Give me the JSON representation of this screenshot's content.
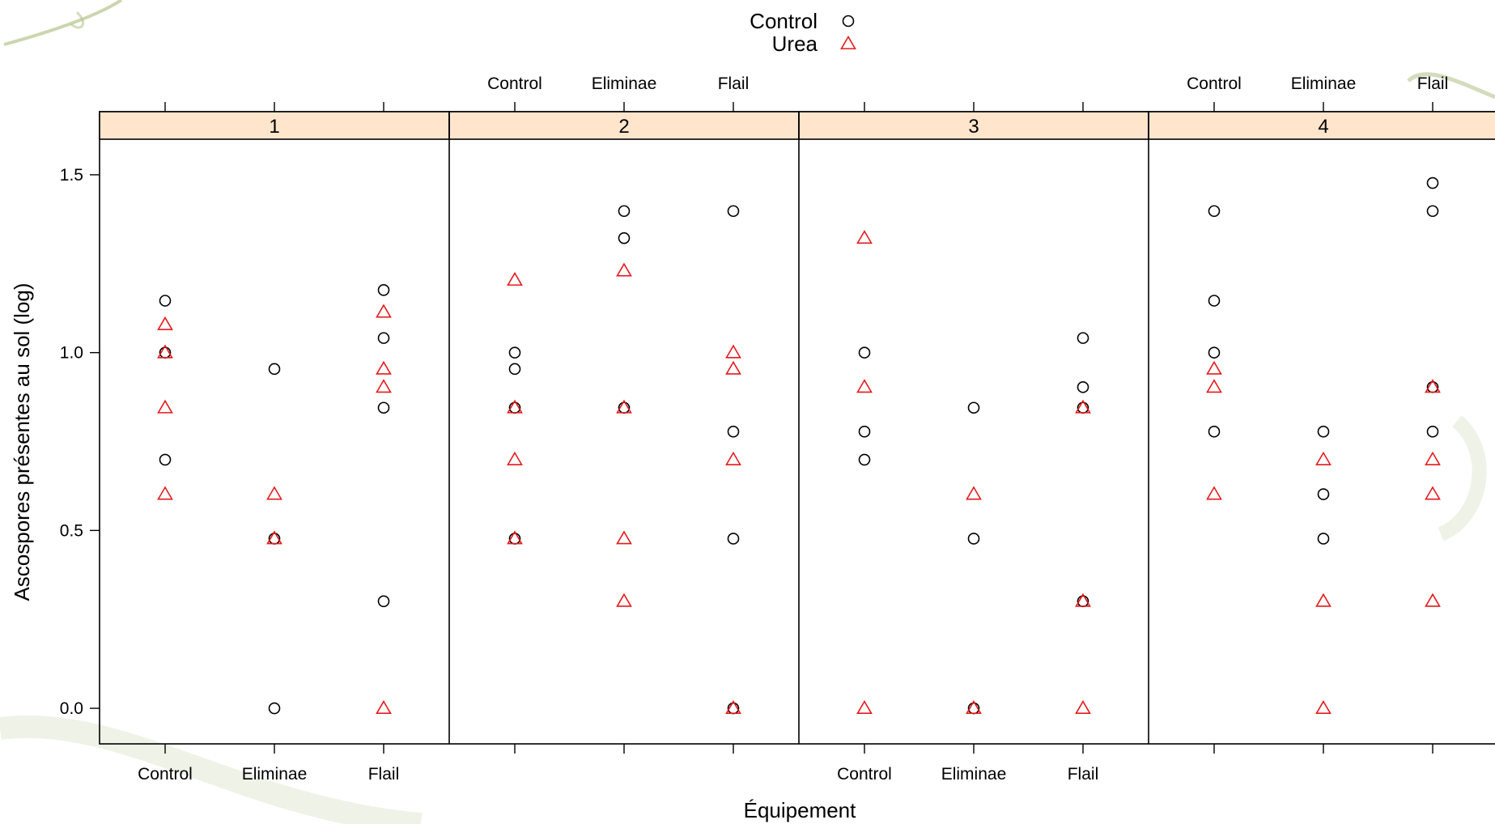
{
  "chart_data": {
    "type": "scatter",
    "title": "",
    "xlabel": "Équipement",
    "ylabel": "Ascospores présentes au sol (log)",
    "categories": [
      "Control",
      "Eliminae",
      "Flail"
    ],
    "ylim": [
      -0.1,
      1.6
    ],
    "yticks": [
      "0.0",
      "0.5",
      "1.0",
      "1.5"
    ],
    "grid": false,
    "legend_position": "top-center",
    "strip_color": "#ffe5cc",
    "panels": [
      {
        "name": "1",
        "series": [
          {
            "name": "Control",
            "marker": "circle",
            "color": "#000000",
            "points": [
              [
                "Control",
                1.146
              ],
              [
                "Control",
                1.0
              ],
              [
                "Control",
                0.699
              ],
              [
                "Eliminae",
                0.954
              ],
              [
                "Eliminae",
                0.477
              ],
              [
                "Eliminae",
                0.0
              ],
              [
                "Flail",
                1.176
              ],
              [
                "Flail",
                1.041
              ],
              [
                "Flail",
                0.845
              ],
              [
                "Flail",
                0.301
              ]
            ]
          },
          {
            "name": "Urea",
            "marker": "triangle",
            "color": "#e41a1c",
            "points": [
              [
                "Control",
                1.079
              ],
              [
                "Control",
                1.0
              ],
              [
                "Control",
                0.845
              ],
              [
                "Control",
                0.602
              ],
              [
                "Eliminae",
                0.602
              ],
              [
                "Eliminae",
                0.477
              ],
              [
                "Flail",
                1.114
              ],
              [
                "Flail",
                0.954
              ],
              [
                "Flail",
                0.903
              ],
              [
                "Flail",
                0.0
              ]
            ]
          }
        ]
      },
      {
        "name": "2",
        "series": [
          {
            "name": "Control",
            "marker": "circle",
            "color": "#000000",
            "points": [
              [
                "Control",
                1.0
              ],
              [
                "Control",
                0.954
              ],
              [
                "Control",
                0.845
              ],
              [
                "Control",
                0.477
              ],
              [
                "Eliminae",
                1.398
              ],
              [
                "Eliminae",
                1.322
              ],
              [
                "Eliminae",
                0.845
              ],
              [
                "Flail",
                1.398
              ],
              [
                "Flail",
                0.778
              ],
              [
                "Flail",
                0.477
              ],
              [
                "Flail",
                0.0
              ]
            ]
          },
          {
            "name": "Urea",
            "marker": "triangle",
            "color": "#e41a1c",
            "points": [
              [
                "Control",
                1.204
              ],
              [
                "Control",
                0.845
              ],
              [
                "Control",
                0.699
              ],
              [
                "Control",
                0.477
              ],
              [
                "Eliminae",
                1.23
              ],
              [
                "Eliminae",
                0.845
              ],
              [
                "Eliminae",
                0.477
              ],
              [
                "Eliminae",
                0.301
              ],
              [
                "Flail",
                1.0
              ],
              [
                "Flail",
                0.954
              ],
              [
                "Flail",
                0.699
              ],
              [
                "Flail",
                0.0
              ]
            ]
          }
        ]
      },
      {
        "name": "3",
        "series": [
          {
            "name": "Control",
            "marker": "circle",
            "color": "#000000",
            "points": [
              [
                "Control",
                1.0
              ],
              [
                "Control",
                0.778
              ],
              [
                "Control",
                0.699
              ],
              [
                "Eliminae",
                0.845
              ],
              [
                "Eliminae",
                0.477
              ],
              [
                "Eliminae",
                0.0
              ],
              [
                "Flail",
                1.041
              ],
              [
                "Flail",
                0.903
              ],
              [
                "Flail",
                0.845
              ],
              [
                "Flail",
                0.301
              ]
            ]
          },
          {
            "name": "Urea",
            "marker": "triangle",
            "color": "#e41a1c",
            "points": [
              [
                "Control",
                1.322
              ],
              [
                "Control",
                0.903
              ],
              [
                "Control",
                0.0
              ],
              [
                "Eliminae",
                0.602
              ],
              [
                "Eliminae",
                0.0
              ],
              [
                "Flail",
                0.845
              ],
              [
                "Flail",
                0.301
              ],
              [
                "Flail",
                0.0
              ]
            ]
          }
        ]
      },
      {
        "name": "4",
        "series": [
          {
            "name": "Control",
            "marker": "circle",
            "color": "#000000",
            "points": [
              [
                "Control",
                1.398
              ],
              [
                "Control",
                1.146
              ],
              [
                "Control",
                1.0
              ],
              [
                "Control",
                0.778
              ],
              [
                "Eliminae",
                0.778
              ],
              [
                "Eliminae",
                0.602
              ],
              [
                "Eliminae",
                0.477
              ],
              [
                "Flail",
                1.477
              ],
              [
                "Flail",
                1.398
              ],
              [
                "Flail",
                0.903
              ],
              [
                "Flail",
                0.778
              ]
            ]
          },
          {
            "name": "Urea",
            "marker": "triangle",
            "color": "#e41a1c",
            "points": [
              [
                "Control",
                0.954
              ],
              [
                "Control",
                0.903
              ],
              [
                "Control",
                0.602
              ],
              [
                "Eliminae",
                0.699
              ],
              [
                "Eliminae",
                0.301
              ],
              [
                "Eliminae",
                0.0
              ],
              [
                "Flail",
                0.903
              ],
              [
                "Flail",
                0.699
              ],
              [
                "Flail",
                0.602
              ],
              [
                "Flail",
                0.301
              ]
            ]
          }
        ]
      }
    ],
    "legend": [
      {
        "name": "Control",
        "marker": "circle",
        "color": "#000000"
      },
      {
        "name": "Urea",
        "marker": "triangle",
        "color": "#e41a1c"
      }
    ]
  }
}
